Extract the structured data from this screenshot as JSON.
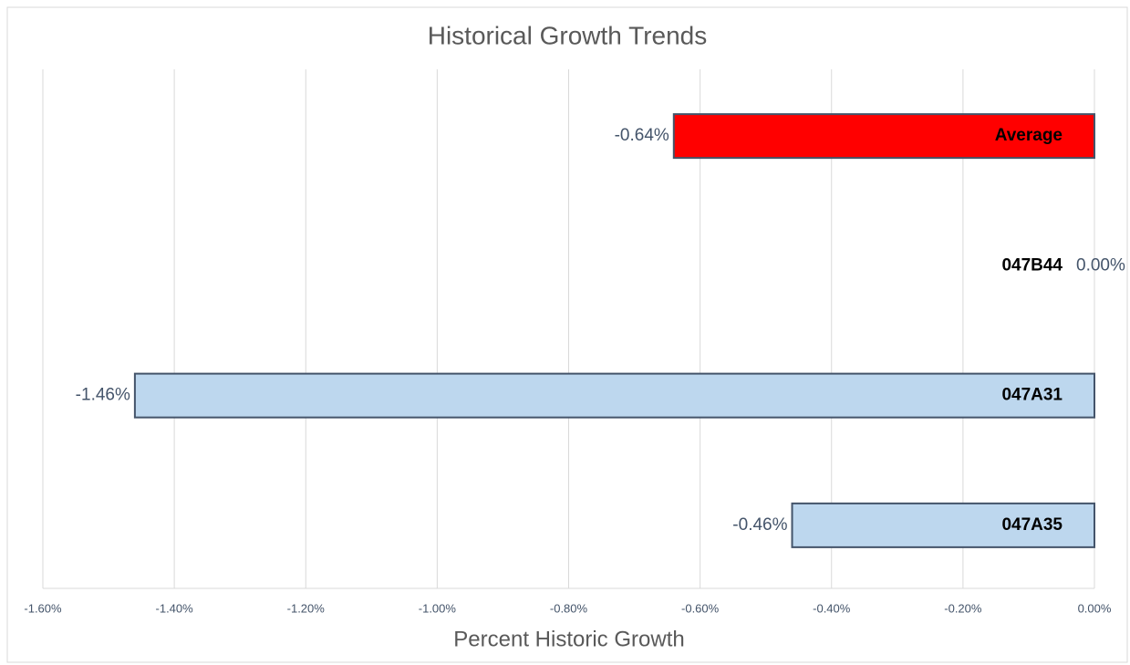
{
  "chart_data": {
    "type": "hbar",
    "title": "Historical Growth Trends",
    "x_label": "Percent Historic Growth",
    "categories": [
      "Average",
      "047B44",
      "047A31",
      "047A35"
    ],
    "values": [
      -0.64,
      0,
      -1.46,
      -0.46
    ],
    "value_labels": [
      "-0.64%",
      "0.00%",
      "-1.46%",
      "-0.46%"
    ],
    "colors": [
      "#ff0000",
      "#bdd7ee",
      "#bdd7ee",
      "#bdd7ee"
    ],
    "xlim": [
      -1.6,
      0
    ],
    "xticks": [
      {
        "value": -1.6,
        "label": "-1.60%"
      },
      {
        "value": -1.4,
        "label": "-1.40%"
      },
      {
        "value": -1.2,
        "label": "-1.20%"
      },
      {
        "value": -1.0,
        "label": "-1.00%"
      },
      {
        "value": -0.8,
        "label": "-0.80%"
      },
      {
        "value": -0.6,
        "label": "-0.60%"
      },
      {
        "value": -0.4,
        "label": "-0.40%"
      },
      {
        "value": -0.2,
        "label": "-0.20%"
      },
      {
        "value": 0,
        "label": "0.00%"
      }
    ],
    "grid": true
  }
}
